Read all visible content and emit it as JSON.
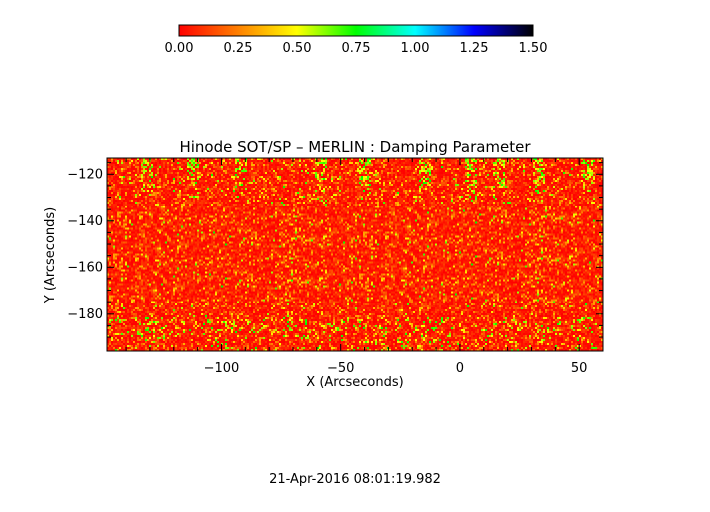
{
  "chart_data": {
    "type": "heatmap",
    "title": "Hinode SOT/SP – MERLIN : Damping Parameter",
    "xlabel": "X (Arcseconds)",
    "ylabel": "Y (Arcseconds)",
    "xlim": [
      -148,
      60
    ],
    "ylim": [
      -196,
      -113
    ],
    "xticks": [
      -100,
      -50,
      0,
      50
    ],
    "yticks": [
      -180,
      -160,
      -140,
      -120
    ],
    "colorbar": {
      "range": [
        0.0,
        1.5
      ],
      "ticks": [
        "0.00",
        "0.25",
        "0.50",
        "0.75",
        "1.00",
        "1.25",
        "1.50"
      ],
      "colors": [
        "#ff0000",
        "#ff8000",
        "#ffff00",
        "#00ff00",
        "#00ffff",
        "#0000ff",
        "#000000"
      ]
    },
    "value_summary": "predominantly 0.00–0.35 (red/orange/yellow) with scattered green 0.5–0.75 patches, concentrated in vertical streaks near the top rows and near the bottom rows"
  },
  "timestamp": "21-Apr-2016 08:01:19.982"
}
